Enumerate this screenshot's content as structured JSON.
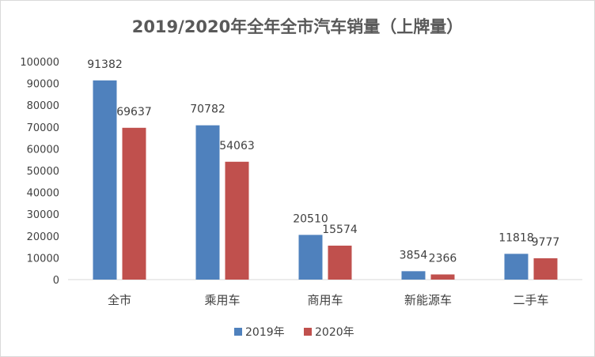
{
  "chart_data": {
    "type": "bar",
    "title": "2019/2020年全年全市汽车销量（上牌量）",
    "categories": [
      "全市",
      "乘用车",
      "商用车",
      "新能源车",
      "二手车"
    ],
    "series": [
      {
        "name": "2019年",
        "color": "#4f81bd",
        "values": [
          91382,
          70782,
          20510,
          3854,
          11818
        ]
      },
      {
        "name": "2020年",
        "color": "#c0504d",
        "values": [
          69637,
          54063,
          15574,
          2366,
          9777
        ]
      }
    ],
    "ylim": [
      0,
      100000
    ],
    "yticks": [
      "0",
      "10000",
      "20000",
      "30000",
      "40000",
      "50000",
      "60000",
      "70000",
      "80000",
      "90000",
      "100000"
    ],
    "grid": false,
    "legend": "bottom"
  }
}
